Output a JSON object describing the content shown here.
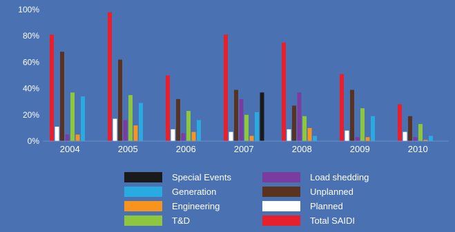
{
  "chart_data": {
    "type": "bar",
    "categories": [
      "2004",
      "2005",
      "2006",
      "2007",
      "2008",
      "2009",
      "2010"
    ],
    "ylim": [
      0,
      100
    ],
    "y_ticks": [
      "0%",
      "20%",
      "40%",
      "60%",
      "80%",
      "100%"
    ],
    "grid": false,
    "legend_position": "bottom",
    "series": [
      {
        "name": "Total SAIDI",
        "color": "#e8202e",
        "values": [
          81,
          98,
          50,
          81,
          75,
          51,
          28
        ]
      },
      {
        "name": "Planned",
        "color": "#ffffff",
        "values": [
          11,
          17,
          9,
          7,
          9,
          8,
          7
        ]
      },
      {
        "name": "Unplanned",
        "color": "#5a3320",
        "values": [
          68,
          62,
          32,
          39,
          27,
          39,
          19
        ]
      },
      {
        "name": "Load shedding",
        "color": "#7a3c9e",
        "values": [
          5,
          16,
          6,
          32,
          37,
          3,
          3
        ]
      },
      {
        "name": "T&D",
        "color": "#8dc63f",
        "values": [
          37,
          35,
          23,
          20,
          19,
          25,
          13
        ]
      },
      {
        "name": "Engineering",
        "color": "#f7941d",
        "values": [
          5,
          12,
          7,
          4,
          10,
          3,
          1
        ]
      },
      {
        "name": "Generation",
        "color": "#29abe2",
        "values": [
          34,
          29,
          16,
          22,
          4,
          19,
          4
        ]
      },
      {
        "name": "Special Events",
        "color": "#1a1a1a",
        "values": [
          0,
          0,
          0,
          37,
          0,
          0,
          0
        ]
      }
    ],
    "legend": [
      {
        "name": "Special Events",
        "color": "#1a1a1a"
      },
      {
        "name": "Load shedding",
        "color": "#7a3c9e"
      },
      {
        "name": "Generation",
        "color": "#29abe2"
      },
      {
        "name": "Unplanned",
        "color": "#5a3320"
      },
      {
        "name": "Engineering",
        "color": "#f7941d"
      },
      {
        "name": "Planned",
        "color": "#ffffff"
      },
      {
        "name": "T&D",
        "color": "#8dc63f"
      },
      {
        "name": "Total SAIDI",
        "color": "#e8202e"
      }
    ]
  }
}
